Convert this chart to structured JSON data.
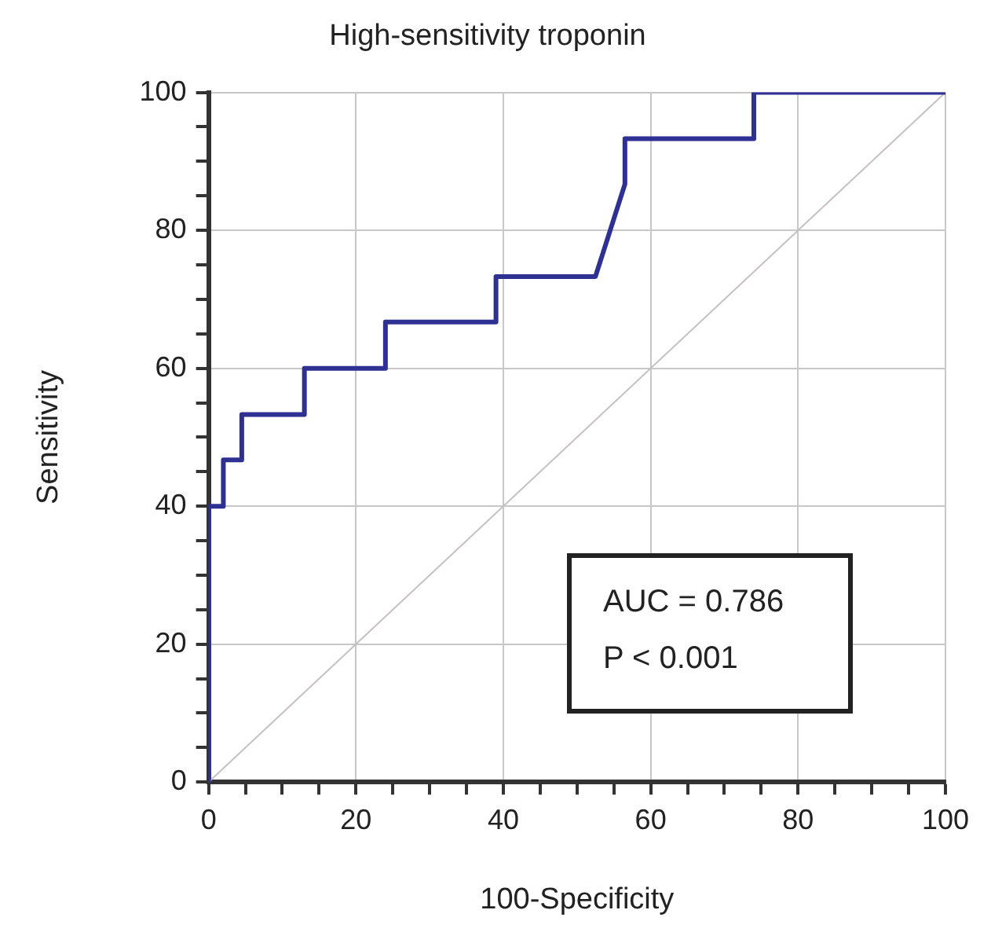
{
  "chart_data": {
    "type": "line",
    "title": "High-sensitivity troponin",
    "xlabel": "100-Specificity",
    "ylabel": "Sensitivity",
    "series": [
      {
        "color": "#2e3192",
        "x": [
          0,
          0,
          2,
          2,
          4.5,
          4.5,
          13,
          13,
          24,
          24,
          39,
          39,
          52.5,
          56.5,
          56.5,
          74,
          74,
          100
        ],
        "values": [
          0,
          40,
          40,
          46.7,
          46.7,
          53.3,
          53.3,
          60,
          60,
          66.7,
          66.7,
          73.3,
          73.3,
          86.7,
          93.3,
          93.3,
          100,
          100
        ]
      },
      {
        "color": "#c8c0c0",
        "x": [
          0,
          100
        ],
        "values": [
          0,
          100
        ]
      }
    ],
    "xlim": [
      0,
      100
    ],
    "ylim": [
      0,
      100
    ],
    "xticks": [
      0,
      {
        "value": 5,
        "label": null
      },
      {
        "value": 10,
        "label": null
      },
      {
        "value": 15,
        "label": null
      },
      20,
      {
        "value": 25,
        "label": null
      },
      {
        "value": 30,
        "label": null
      },
      {
        "value": 35,
        "label": null
      },
      40,
      {
        "value": 45,
        "label": null
      },
      {
        "value": 50,
        "label": null
      },
      {
        "value": 55,
        "label": null
      },
      60,
      {
        "value": 65,
        "label": null
      },
      {
        "value": 70,
        "label": null
      },
      {
        "value": 75,
        "label": null
      },
      80,
      {
        "value": 85,
        "label": null
      },
      {
        "value": 90,
        "label": null
      },
      {
        "value": 95,
        "label": null
      },
      100
    ],
    "yticks": [
      0,
      {
        "value": 5,
        "label": null
      },
      {
        "value": 10,
        "label": null
      },
      {
        "value": 15,
        "label": null
      },
      20,
      {
        "value": 25,
        "label": null
      },
      {
        "value": 30,
        "label": null
      },
      {
        "value": 35,
        "label": null
      },
      40,
      {
        "value": 45,
        "label": null
      },
      {
        "value": 50,
        "label": null
      },
      {
        "value": 55,
        "label": null
      },
      60,
      {
        "value": 65,
        "label": null
      },
      {
        "value": 70,
        "label": null
      },
      {
        "value": 75,
        "label": null
      },
      80,
      {
        "value": 85,
        "label": null
      },
      {
        "value": 90,
        "label": null
      },
      {
        "value": 95,
        "label": null
      },
      100
    ],
    "grid": true,
    "legend": false,
    "marker": "none",
    "line_style": "solid",
    "annotations": [
      "AUC = 0.786",
      "P < 0.001"
    ]
  }
}
